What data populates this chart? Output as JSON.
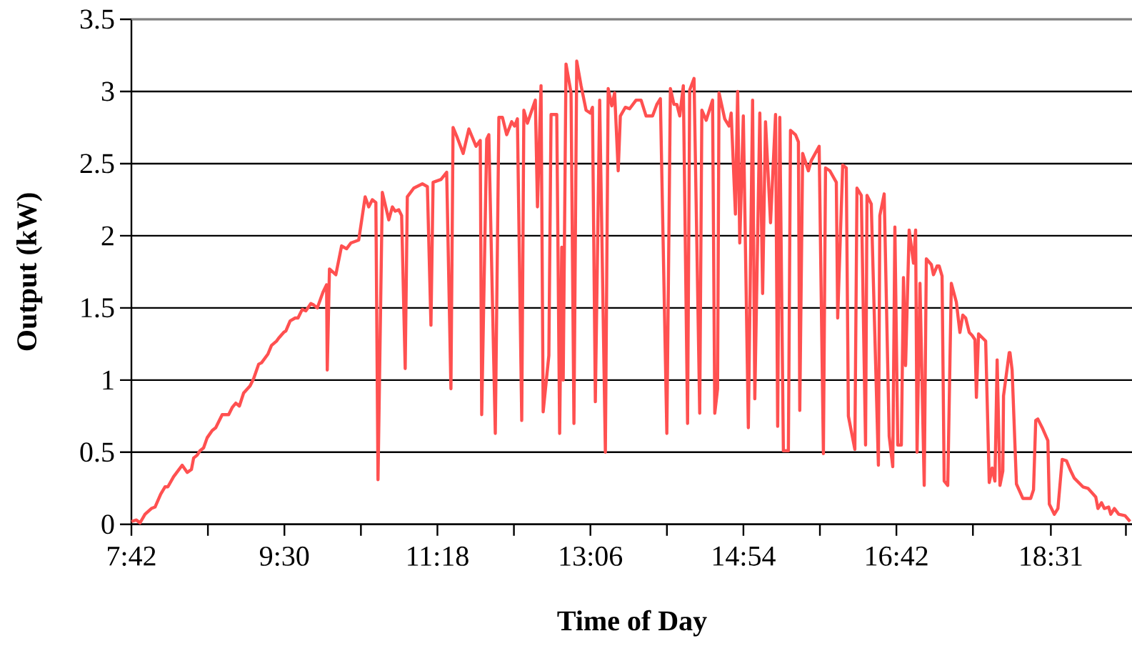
{
  "chart_data": {
    "type": "line",
    "xlabel": "Time of Day",
    "ylabel": "Output (kW)",
    "color": "#ff5050",
    "grid": "y",
    "marker": "none",
    "line_style": "solid",
    "xlim": [
      7.7,
      19.48
    ],
    "ylim": [
      0,
      3.5
    ],
    "xticks": [
      {
        "value": 7.7,
        "label": "7:42"
      },
      {
        "value": 8.6,
        "label": null
      },
      {
        "value": 9.5,
        "label": "9:30"
      },
      {
        "value": 10.4,
        "label": null
      },
      {
        "value": 11.3,
        "label": "11:18"
      },
      {
        "value": 12.2,
        "label": null
      },
      {
        "value": 13.1,
        "label": "13:06"
      },
      {
        "value": 14.0,
        "label": null
      },
      {
        "value": 14.9,
        "label": "14:54"
      },
      {
        "value": 15.8,
        "label": null
      },
      {
        "value": 16.7,
        "label": "16:42"
      },
      {
        "value": 17.6,
        "label": null
      },
      {
        "value": 18.517,
        "label": "18:31"
      },
      {
        "value": 19.4,
        "label": null
      }
    ],
    "yticks": [
      0,
      0.5,
      1,
      1.5,
      2,
      2.5,
      3,
      3.5
    ],
    "x": [
      7.7,
      7.759,
      7.801,
      7.86,
      7.935,
      7.978,
      8.045,
      8.095,
      8.129,
      8.196,
      8.297,
      8.356,
      8.406,
      8.432,
      8.474,
      8.507,
      8.549,
      8.591,
      8.65,
      8.692,
      8.768,
      8.844,
      8.886,
      8.928,
      8.97,
      9.02,
      9.096,
      9.138,
      9.197,
      9.231,
      9.306,
      9.348,
      9.407,
      9.432,
      9.491,
      9.517,
      9.567,
      9.626,
      9.66,
      9.71,
      9.752,
      9.811,
      9.845,
      9.887,
      9.954,
      9.996,
      10.004,
      10.03,
      10.105,
      10.173,
      10.231,
      10.282,
      10.374,
      10.45,
      10.492,
      10.534,
      10.576,
      10.601,
      10.652,
      10.728,
      10.77,
      10.803,
      10.845,
      10.879,
      10.921,
      10.946,
      11.022,
      11.123,
      11.182,
      11.224,
      11.249,
      11.342,
      11.409,
      11.459,
      11.484,
      11.527,
      11.603,
      11.67,
      11.754,
      11.804,
      11.821,
      11.88,
      11.905,
      11.981,
      12.023,
      12.065,
      12.115,
      12.174,
      12.208,
      12.241,
      12.292,
      12.317,
      12.359,
      12.452,
      12.477,
      12.519,
      12.544,
      12.611,
      12.637,
      12.704,
      12.738,
      12.763,
      12.78,
      12.813,
      12.872,
      12.906,
      12.939,
      12.99,
      13.049,
      13.099,
      13.124,
      13.158,
      13.209,
      13.276,
      13.309,
      13.351,
      13.385,
      13.427,
      13.452,
      13.511,
      13.561,
      13.637,
      13.696,
      13.755,
      13.831,
      13.881,
      13.923,
      13.999,
      14.041,
      14.083,
      14.117,
      14.151,
      14.193,
      14.243,
      14.268,
      14.319,
      14.386,
      14.411,
      14.462,
      14.537,
      14.563,
      14.596,
      14.613,
      14.68,
      14.731,
      14.756,
      14.806,
      14.832,
      14.857,
      14.899,
      14.958,
      15.008,
      15.034,
      15.093,
      15.126,
      15.16,
      15.219,
      15.278,
      15.303,
      15.328,
      15.37,
      15.429,
      15.454,
      15.513,
      15.547,
      15.563,
      15.597,
      15.664,
      15.698,
      15.791,
      15.841,
      15.866,
      15.917,
      15.993,
      16.009,
      16.068,
      16.11,
      16.135,
      16.211,
      16.236,
      16.287,
      16.337,
      16.354,
      16.404,
      16.488,
      16.505,
      16.556,
      16.615,
      16.657,
      16.682,
      16.716,
      16.758,
      16.783,
      16.808,
      16.85,
      16.901,
      16.926,
      16.943,
      16.977,
      17.027,
      17.052,
      17.111,
      17.136,
      17.178,
      17.203,
      17.237,
      17.262,
      17.304,
      17.346,
      17.405,
      17.447,
      17.481,
      17.515,
      17.557,
      17.59,
      17.624,
      17.641,
      17.666,
      17.75,
      17.792,
      17.826,
      17.859,
      17.885,
      17.918,
      17.952,
      17.96,
      18.027,
      18.036,
      18.061,
      18.112,
      18.187,
      18.28,
      18.313,
      18.339,
      18.364,
      18.415,
      18.482,
      18.499,
      18.558,
      18.6,
      18.65,
      18.701,
      18.751,
      18.793,
      18.894,
      18.953,
      19.045,
      19.071,
      19.113,
      19.146,
      19.197,
      19.222,
      19.264,
      19.315,
      19.39,
      19.449
    ],
    "values": [
      0.02,
      0.03,
      0.01,
      0.07,
      0.11,
      0.12,
      0.21,
      0.26,
      0.26,
      0.33,
      0.41,
      0.36,
      0.38,
      0.46,
      0.48,
      0.51,
      0.53,
      0.6,
      0.65,
      0.67,
      0.76,
      0.76,
      0.81,
      0.84,
      0.82,
      0.91,
      0.96,
      1.01,
      1.11,
      1.12,
      1.18,
      1.24,
      1.27,
      1.29,
      1.33,
      1.34,
      1.41,
      1.43,
      1.43,
      1.49,
      1.48,
      1.53,
      1.52,
      1.5,
      1.61,
      1.66,
      1.07,
      1.77,
      1.73,
      1.93,
      1.91,
      1.95,
      1.97,
      2.27,
      2.2,
      2.25,
      2.23,
      0.31,
      2.3,
      2.11,
      2.2,
      2.17,
      2.18,
      2.14,
      1.08,
      2.27,
      2.33,
      2.36,
      2.34,
      1.38,
      2.37,
      2.39,
      2.44,
      0.94,
      2.75,
      2.69,
      2.57,
      2.74,
      2.62,
      2.66,
      0.76,
      2.67,
      2.7,
      0.63,
      2.82,
      2.82,
      2.7,
      2.79,
      2.76,
      2.81,
      0.72,
      2.87,
      2.78,
      2.94,
      2.2,
      3.04,
      0.78,
      1.17,
      2.84,
      2.84,
      0.63,
      1.92,
      1.0,
      3.19,
      2.99,
      0.7,
      3.21,
      3.04,
      2.87,
      2.85,
      2.89,
      0.85,
      2.94,
      0.5,
      3.02,
      2.9,
      2.99,
      2.45,
      2.83,
      2.89,
      2.88,
      2.94,
      2.94,
      2.83,
      2.83,
      2.91,
      2.95,
      0.63,
      3.02,
      2.91,
      2.91,
      2.83,
      3.04,
      0.7,
      3.01,
      3.09,
      0.77,
      2.87,
      2.8,
      2.94,
      0.77,
      0.94,
      2.99,
      2.81,
      2.76,
      2.85,
      2.15,
      3.0,
      1.95,
      2.83,
      0.67,
      2.94,
      0.87,
      2.85,
      1.6,
      2.79,
      2.09,
      2.84,
      0.68,
      2.82,
      0.51,
      0.51,
      2.73,
      2.7,
      2.65,
      0.79,
      2.57,
      2.45,
      2.52,
      2.62,
      0.49,
      2.47,
      2.45,
      2.37,
      1.43,
      2.49,
      2.47,
      0.75,
      0.52,
      2.33,
      2.28,
      0.55,
      2.28,
      2.22,
      0.41,
      2.14,
      2.29,
      0.61,
      0.4,
      2.06,
      0.55,
      0.55,
      1.71,
      1.1,
      2.04,
      1.81,
      2.04,
      0.5,
      1.67,
      0.27,
      1.84,
      1.8,
      1.73,
      1.79,
      1.79,
      1.72,
      0.3,
      0.27,
      1.67,
      1.54,
      1.33,
      1.45,
      1.43,
      1.33,
      1.31,
      1.28,
      0.88,
      1.32,
      1.27,
      0.29,
      0.39,
      0.3,
      1.14,
      0.27,
      0.37,
      0.89,
      1.19,
      1.19,
      1.07,
      0.28,
      0.18,
      0.18,
      0.24,
      0.72,
      0.73,
      0.67,
      0.58,
      0.14,
      0.07,
      0.11,
      0.45,
      0.44,
      0.37,
      0.32,
      0.26,
      0.25,
      0.19,
      0.11,
      0.15,
      0.11,
      0.12,
      0.07,
      0.11,
      0.07,
      0.06,
      0.02
    ]
  }
}
